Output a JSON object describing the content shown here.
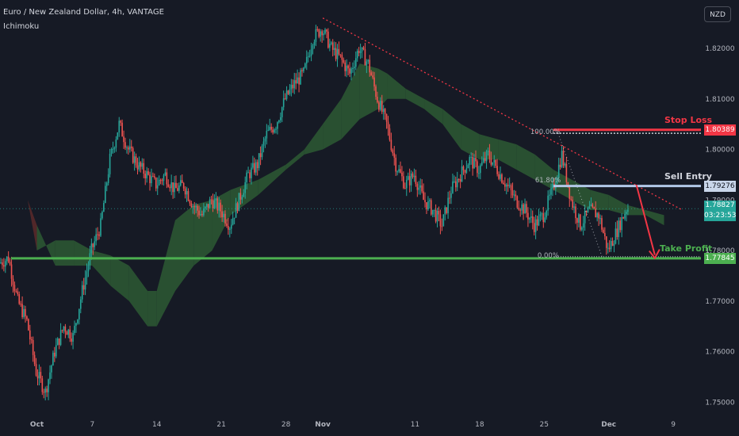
{
  "header": {
    "title": "Euro / New Zealand Dollar, 4h, VANTAGE",
    "indicator": "Ichimoku"
  },
  "currency_button": "NZD",
  "colors": {
    "background": "#161a25",
    "bull": "#26a69a",
    "bear": "#ef5350",
    "stop": "#f23645",
    "entry": "#b2c8e8",
    "profit": "#4caf50",
    "cloud_bull": "#2d5a34",
    "cloud_bear": "#5c2a2a"
  },
  "annotations": {
    "stop_loss": "Stop Loss",
    "sell_entry": "Sell Entry",
    "take_profit": "Take Profit",
    "fib_100": "100.00%",
    "fib_618": "61.80%",
    "fib_0": "0.00%"
  },
  "price_boxes": {
    "stop": "1.80389",
    "entry": "1.79276",
    "current": "1.78827",
    "countdown": "03:23:53",
    "profit": "1.77845"
  },
  "chart_data": {
    "type": "candlestick",
    "title": "Euro / New Zealand Dollar, 4h, VANTAGE",
    "ylim": [
      1.748,
      1.828
    ],
    "y_ticks": [
      "1.82000",
      "1.81000",
      "1.80000",
      "1.79000",
      "1.78000",
      "1.77000",
      "1.76000",
      "1.75000"
    ],
    "y_tick_values": [
      1.82,
      1.81,
      1.8,
      1.79,
      1.78,
      1.77,
      1.76,
      1.75
    ],
    "x_range": [
      "2024-09-27",
      "2024-12-12"
    ],
    "x_ticks": [
      {
        "label": "Oct",
        "date": "2024-10-01"
      },
      {
        "label": "7",
        "date": "2024-10-07"
      },
      {
        "label": "14",
        "date": "2024-10-14"
      },
      {
        "label": "21",
        "date": "2024-10-21"
      },
      {
        "label": "28",
        "date": "2024-10-28"
      },
      {
        "label": "Nov",
        "date": "2024-11-01"
      },
      {
        "label": "11",
        "date": "2024-11-11"
      },
      {
        "label": "18",
        "date": "2024-11-18"
      },
      {
        "label": "25",
        "date": "2024-11-25"
      },
      {
        "label": "Dec",
        "date": "2024-12-02"
      },
      {
        "label": "9",
        "date": "2024-12-09"
      }
    ],
    "price_path": [
      [
        "2024-09-27",
        1.7775
      ],
      [
        "2024-09-28",
        1.7785
      ],
      [
        "2024-09-29",
        1.77
      ],
      [
        "2024-09-30",
        1.766
      ],
      [
        "2024-10-01",
        1.756
      ],
      [
        "2024-10-02",
        1.752
      ],
      [
        "2024-10-03",
        1.76
      ],
      [
        "2024-10-04",
        1.765
      ],
      [
        "2024-10-05",
        1.763
      ],
      [
        "2024-10-06",
        1.772
      ],
      [
        "2024-10-07",
        1.78
      ],
      [
        "2024-10-08",
        1.785
      ],
      [
        "2024-10-09",
        1.798
      ],
      [
        "2024-10-10",
        1.805
      ],
      [
        "2024-10-11",
        1.8
      ],
      [
        "2024-10-12",
        1.797
      ],
      [
        "2024-10-13",
        1.795
      ],
      [
        "2024-10-14",
        1.793
      ],
      [
        "2024-10-15",
        1.795
      ],
      [
        "2024-10-16",
        1.792
      ],
      [
        "2024-10-17",
        1.793
      ],
      [
        "2024-10-18",
        1.789
      ],
      [
        "2024-10-19",
        1.787
      ],
      [
        "2024-10-20",
        1.79
      ],
      [
        "2024-10-21",
        1.788
      ],
      [
        "2024-10-22",
        1.785
      ],
      [
        "2024-10-23",
        1.79
      ],
      [
        "2024-10-24",
        1.795
      ],
      [
        "2024-10-25",
        1.797
      ],
      [
        "2024-10-26",
        1.803
      ],
      [
        "2024-10-27",
        1.805
      ],
      [
        "2024-10-28",
        1.81
      ],
      [
        "2024-10-29",
        1.813
      ],
      [
        "2024-10-30",
        1.815
      ],
      [
        "2024-10-31",
        1.822
      ],
      [
        "2024-11-01",
        1.824
      ],
      [
        "2024-11-02",
        1.82
      ],
      [
        "2024-11-03",
        1.818
      ],
      [
        "2024-11-04",
        1.815
      ],
      [
        "2024-11-05",
        1.82
      ],
      [
        "2024-11-06",
        1.817
      ],
      [
        "2024-11-07",
        1.81
      ],
      [
        "2024-11-08",
        1.805
      ],
      [
        "2024-11-09",
        1.797
      ],
      [
        "2024-11-10",
        1.793
      ],
      [
        "2024-11-11",
        1.795
      ],
      [
        "2024-11-12",
        1.79
      ],
      [
        "2024-11-13",
        1.788
      ],
      [
        "2024-11-14",
        1.785
      ],
      [
        "2024-11-15",
        1.792
      ],
      [
        "2024-11-16",
        1.795
      ],
      [
        "2024-11-17",
        1.798
      ],
      [
        "2024-11-18",
        1.796
      ],
      [
        "2024-11-19",
        1.799
      ],
      [
        "2024-11-20",
        1.796
      ],
      [
        "2024-11-21",
        1.793
      ],
      [
        "2024-11-22",
        1.79
      ],
      [
        "2024-11-23",
        1.788
      ],
      [
        "2024-11-24",
        1.785
      ],
      [
        "2024-11-25",
        1.787
      ],
      [
        "2024-11-26",
        1.792
      ],
      [
        "2024-11-27",
        1.799
      ],
      [
        "2024-11-28",
        1.79
      ],
      [
        "2024-11-29",
        1.785
      ],
      [
        "2024-11-30",
        1.788
      ],
      [
        "2024-12-01",
        1.787
      ],
      [
        "2024-12-02",
        1.78
      ],
      [
        "2024-12-03",
        1.784
      ],
      [
        "2024-12-04",
        1.7883
      ]
    ],
    "ichimoku_cloud": [
      [
        "2024-09-29",
        1.793,
        1.793
      ],
      [
        "2024-09-30",
        1.79,
        1.79
      ],
      [
        "2024-10-01",
        1.785,
        1.78
      ],
      [
        "2024-10-03",
        1.777,
        1.782
      ],
      [
        "2024-10-05",
        1.777,
        1.782
      ],
      [
        "2024-10-07",
        1.777,
        1.78
      ],
      [
        "2024-10-09",
        1.773,
        1.779
      ],
      [
        "2024-10-11",
        1.77,
        1.777
      ],
      [
        "2024-10-13",
        1.765,
        1.772
      ],
      [
        "2024-10-14",
        1.765,
        1.772
      ],
      [
        "2024-10-16",
        1.772,
        1.786
      ],
      [
        "2024-10-18",
        1.777,
        1.789
      ],
      [
        "2024-10-20",
        1.78,
        1.79
      ],
      [
        "2024-10-22",
        1.787,
        1.792
      ],
      [
        "2024-10-25",
        1.791,
        1.794
      ],
      [
        "2024-10-28",
        1.796,
        1.797
      ],
      [
        "2024-10-30",
        1.799,
        1.8
      ],
      [
        "2024-11-01",
        1.8,
        1.805
      ],
      [
        "2024-11-03",
        1.802,
        1.81
      ],
      [
        "2024-11-05",
        1.806,
        1.817
      ],
      [
        "2024-11-07",
        1.808,
        1.816
      ],
      [
        "2024-11-08",
        1.81,
        1.815
      ],
      [
        "2024-11-10",
        1.81,
        1.812
      ],
      [
        "2024-11-12",
        1.808,
        1.81
      ],
      [
        "2024-11-14",
        1.805,
        1.808
      ],
      [
        "2024-11-16",
        1.8,
        1.805
      ],
      [
        "2024-11-18",
        1.798,
        1.803
      ],
      [
        "2024-11-20",
        1.798,
        1.802
      ],
      [
        "2024-11-22",
        1.796,
        1.801
      ],
      [
        "2024-11-24",
        1.794,
        1.799
      ],
      [
        "2024-11-26",
        1.792,
        1.796
      ],
      [
        "2024-11-28",
        1.79,
        1.794
      ],
      [
        "2024-11-30",
        1.788,
        1.792
      ],
      [
        "2024-12-02",
        1.788,
        1.791
      ],
      [
        "2024-12-04",
        1.787,
        1.789
      ],
      [
        "2024-12-06",
        1.787,
        1.788
      ],
      [
        "2024-12-08",
        1.785,
        1.787
      ]
    ],
    "levels": {
      "stop_loss": 1.80389,
      "sell_entry": 1.79276,
      "current": 1.78827,
      "take_profit": 1.77845
    },
    "trendline": [
      [
        "2024-11-01",
        1.826
      ],
      [
        "2024-12-10",
        1.788
      ]
    ],
    "fib": {
      "high": 1.8032,
      "mid": 1.79276,
      "low": 1.77845,
      "start": "2024-11-26"
    },
    "projection": [
      [
        "2024-12-05",
        1.793
      ],
      [
        "2024-12-07",
        1.7785
      ]
    ]
  }
}
